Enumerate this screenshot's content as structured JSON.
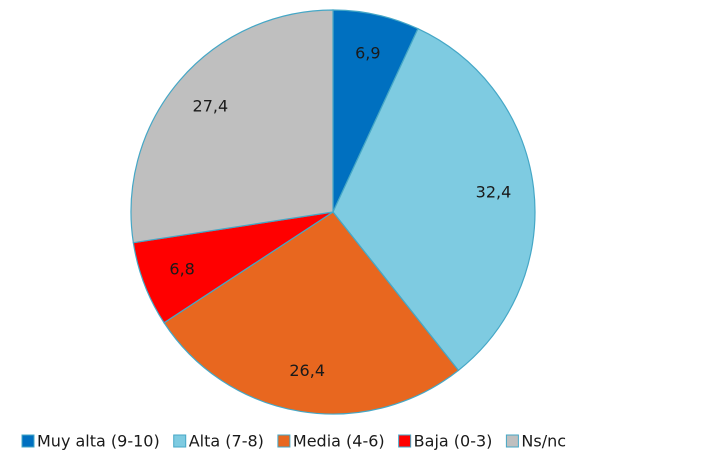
{
  "chart_data": {
    "type": "pie",
    "categories": [
      "Muy alta (9-10)",
      "Alta (7-8)",
      "Media (4-6)",
      "Baja (0-3)",
      "Ns/nc"
    ],
    "values": [
      6.9,
      32.4,
      26.4,
      6.8,
      27.4
    ],
    "value_labels": [
      "6,9",
      "32,4",
      "26,4",
      "6,8",
      "27,4"
    ],
    "colors": [
      "#0070c0",
      "#7ecbe1",
      "#e8671f",
      "#ff0000",
      "#bfbfbf"
    ],
    "legend": "bottom"
  }
}
